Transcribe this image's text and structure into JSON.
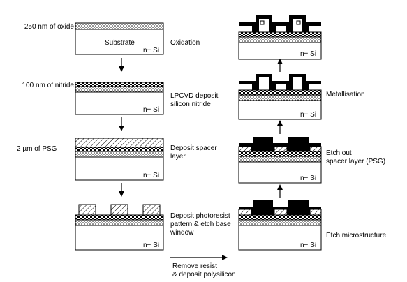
{
  "diagram": {
    "left_column": [
      {
        "thickness_label": "250 nm of oxide",
        "substrate_label": "Substrate",
        "doping_label": "n+ Si",
        "step_label": [
          "Oxidation"
        ]
      },
      {
        "thickness_label": "100 nm of nitride",
        "doping_label": "n+ Si",
        "step_label": [
          "LPCVD deposit",
          "silicon nitride"
        ]
      },
      {
        "thickness_label": "2 µm of PSG",
        "doping_label": "n+ Si",
        "step_label": [
          "Deposit spacer",
          "layer"
        ]
      },
      {
        "doping_label": "n+ Si",
        "step_label": [
          "Deposit photoresist",
          "pattern & etch base",
          "window"
        ]
      }
    ],
    "transition_label": [
      "Remove resist",
      "& deposit polysilicon"
    ],
    "right_column": [
      {
        "doping_label": "n+ Si",
        "step_label": [
          "Etch microstructure"
        ]
      },
      {
        "doping_label": "n+ Si",
        "step_label": [
          "Etch out",
          "spacer layer (PSG)"
        ]
      },
      {
        "doping_label": "n+ Si",
        "step_label": [
          "Metallisation"
        ]
      },
      {
        "doping_label": "n+ Si",
        "step_label": []
      }
    ],
    "colors": {
      "ink": "#000000",
      "background": "#ffffff"
    }
  }
}
